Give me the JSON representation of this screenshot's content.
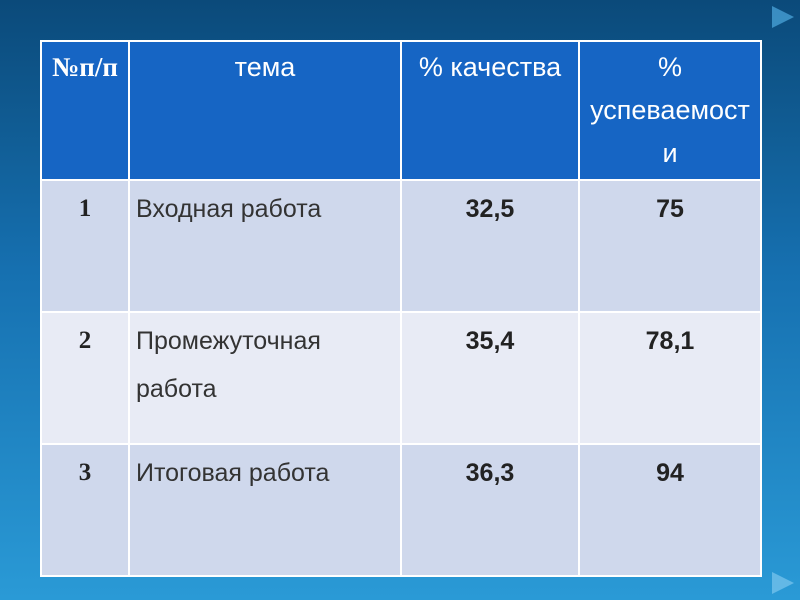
{
  "table": {
    "header": [
      "№п/п",
      "тема",
      "% качества",
      "% успеваемости"
    ],
    "rows": [
      [
        "1",
        "Входная работа",
        "32,5",
        "75"
      ],
      [
        "2",
        "Промежуточная работа",
        "35,4",
        "78,1"
      ],
      [
        "3",
        "Итоговая работа",
        "36,3",
        "94"
      ]
    ]
  }
}
